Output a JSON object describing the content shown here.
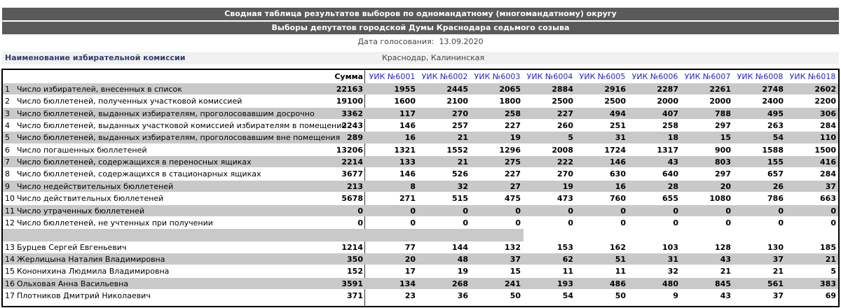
{
  "header": {
    "title": "Сводная таблица результатов выборов по одномандатному (многомандатному) округу",
    "subtitle": "Выборы депутатов городской Думы Краснодара седьмого созыва",
    "date_label": "Дата голосования:",
    "date": "13.09.2020"
  },
  "commission": {
    "label": "Наименование избирательной комиссии",
    "value": "Краснодар, Калининская"
  },
  "table": {
    "sum_header": "Сумма",
    "columns": [
      "УИК №6001",
      "УИК №6002",
      "УИК №6003",
      "УИК №6004",
      "УИК №6005",
      "УИК №6006",
      "УИК №6007",
      "УИК №6008",
      "УИК №6018"
    ],
    "rows": [
      {
        "num": 1,
        "label": "Число избирателей, внесенных в список",
        "sum": 22163,
        "values": [
          1955,
          2445,
          2065,
          2884,
          2916,
          2287,
          2261,
          2748,
          2602
        ]
      },
      {
        "num": 2,
        "label": "Число бюллетеней, полученных участковой комиссией",
        "sum": 19100,
        "values": [
          1600,
          2100,
          1800,
          2500,
          2500,
          2000,
          2000,
          2400,
          2200
        ]
      },
      {
        "num": 3,
        "label": "Число бюллетеней, выданных избирателям, проголосовавшим досрочно",
        "sum": 3362,
        "values": [
          117,
          270,
          258,
          227,
          494,
          407,
          788,
          495,
          306
        ]
      },
      {
        "num": 4,
        "label": "Число бюллетеней, выданных участковой комиссией избирателям в помещении",
        "sum": 2243,
        "values": [
          146,
          257,
          227,
          260,
          251,
          258,
          297,
          263,
          284
        ]
      },
      {
        "num": 5,
        "label": "Число бюллетеней, выданных избирателям, проголосовавшим вне помещения",
        "sum": 289,
        "values": [
          16,
          21,
          19,
          5,
          31,
          18,
          15,
          54,
          110
        ]
      },
      {
        "num": 6,
        "label": "Число погашенных бюллетеней",
        "sum": 13206,
        "values": [
          1321,
          1552,
          1296,
          2008,
          1724,
          1317,
          900,
          1588,
          1500
        ]
      },
      {
        "num": 7,
        "label": "Число бюллетеней, содержащихся в переносных ящиках",
        "sum": 2214,
        "values": [
          133,
          21,
          275,
          222,
          146,
          43,
          803,
          155,
          416
        ]
      },
      {
        "num": 8,
        "label": "Число бюллетеней, содержащихся в стационарных ящиках",
        "sum": 3677,
        "values": [
          146,
          526,
          227,
          270,
          630,
          640,
          297,
          657,
          284
        ]
      },
      {
        "num": 9,
        "label": "Число недействительных бюллетеней",
        "sum": 213,
        "values": [
          8,
          32,
          27,
          19,
          16,
          28,
          20,
          26,
          37
        ]
      },
      {
        "num": 10,
        "label": "Число действительных бюллетеней",
        "sum": 5678,
        "values": [
          271,
          515,
          475,
          473,
          760,
          655,
          1080,
          786,
          663
        ]
      },
      {
        "num": 11,
        "label": "Число утраченных бюллетеней",
        "sum": 0,
        "values": [
          0,
          0,
          0,
          0,
          0,
          0,
          0,
          0,
          0
        ]
      },
      {
        "num": 12,
        "label": "Число бюллетеней, не учтенных при получении",
        "sum": 0,
        "values": [
          0,
          0,
          0,
          0,
          0,
          0,
          0,
          0,
          0
        ]
      },
      {
        "num": 13,
        "label": "Бурцев Сергей Евгеньевич",
        "sum": 1214,
        "values": [
          77,
          144,
          132,
          153,
          162,
          103,
          128,
          130,
          185
        ]
      },
      {
        "num": 14,
        "label": "Жерлицына Наталия Владимировна",
        "sum": 350,
        "values": [
          20,
          48,
          37,
          62,
          51,
          31,
          43,
          37,
          21
        ]
      },
      {
        "num": 15,
        "label": "Кононихина Людмила Владимировна",
        "sum": 152,
        "values": [
          17,
          19,
          15,
          11,
          11,
          32,
          21,
          21,
          5
        ]
      },
      {
        "num": 16,
        "label": "Ольховая Анна Васильевна",
        "sum": 3591,
        "values": [
          134,
          268,
          241,
          193,
          486,
          480,
          845,
          561,
          383
        ]
      },
      {
        "num": 17,
        "label": "Плотников Дмитрий Николаевич",
        "sum": 371,
        "values": [
          23,
          36,
          50,
          54,
          50,
          9,
          43,
          37,
          69
        ]
      }
    ]
  }
}
